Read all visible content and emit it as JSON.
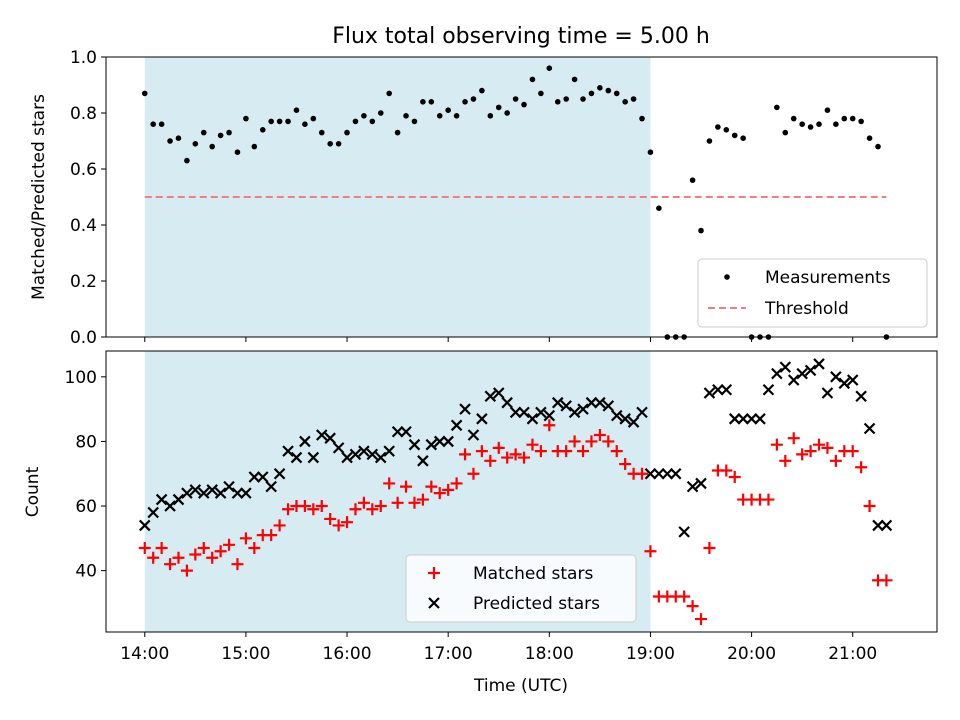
{
  "chart_data": [
    {
      "type": "scatter",
      "title": "Flux total observing time = 5.00 h",
      "ylabel": "Matched/Predicted stars",
      "xlabel": "",
      "ylim": [
        0,
        1.0
      ],
      "xlim": [
        "13:37",
        "21:50"
      ],
      "y_ticks": [
        0.0,
        0.2,
        0.4,
        0.6,
        0.8,
        1.0
      ],
      "y_tick_labels": [
        "0.0",
        "0.2",
        "0.4",
        "0.6",
        "0.8",
        "1.0"
      ],
      "shaded_span": [
        "14:00",
        "19:00"
      ],
      "legend_position": "lower-right",
      "series": [
        {
          "name": "Measurements",
          "marker": "dot",
          "color": "#000000",
          "x": [
            "14:00",
            "14:05",
            "14:10",
            "14:15",
            "14:20",
            "14:25",
            "14:30",
            "14:35",
            "14:40",
            "14:45",
            "14:50",
            "14:55",
            "15:00",
            "15:05",
            "15:10",
            "15:15",
            "15:20",
            "15:25",
            "15:30",
            "15:35",
            "15:40",
            "15:45",
            "15:50",
            "15:55",
            "16:00",
            "16:05",
            "16:10",
            "16:15",
            "16:20",
            "16:25",
            "16:30",
            "16:35",
            "16:40",
            "16:45",
            "16:50",
            "16:55",
            "17:00",
            "17:05",
            "17:10",
            "17:15",
            "17:20",
            "17:25",
            "17:30",
            "17:35",
            "17:40",
            "17:45",
            "17:50",
            "17:55",
            "18:00",
            "18:05",
            "18:10",
            "18:15",
            "18:20",
            "18:25",
            "18:30",
            "18:35",
            "18:40",
            "18:45",
            "18:50",
            "18:55",
            "19:00",
            "19:05",
            "19:10",
            "19:15",
            "19:20",
            "19:25",
            "19:30",
            "19:35",
            "19:40",
            "19:45",
            "19:50",
            "19:55",
            "20:00",
            "20:05",
            "20:10",
            "20:15",
            "20:20",
            "20:25",
            "20:30",
            "20:35",
            "20:40",
            "20:45",
            "20:50",
            "20:55",
            "21:00",
            "21:05",
            "21:10",
            "21:15",
            "21:20"
          ],
          "y": [
            0.87,
            0.76,
            0.76,
            0.7,
            0.71,
            0.63,
            0.69,
            0.73,
            0.68,
            0.72,
            0.73,
            0.66,
            0.78,
            0.68,
            0.74,
            0.77,
            0.77,
            0.77,
            0.81,
            0.76,
            0.78,
            0.73,
            0.69,
            0.69,
            0.73,
            0.77,
            0.79,
            0.77,
            0.8,
            0.87,
            0.73,
            0.79,
            0.77,
            0.84,
            0.84,
            0.79,
            0.81,
            0.79,
            0.84,
            0.85,
            0.88,
            0.79,
            0.82,
            0.8,
            0.85,
            0.83,
            0.92,
            0.87,
            0.96,
            0.84,
            0.85,
            0.92,
            0.85,
            0.87,
            0.89,
            0.88,
            0.87,
            0.84,
            0.85,
            0.78,
            0.66,
            0.46,
            0.0,
            0.0,
            0.0,
            0.56,
            0.38,
            0.7,
            0.75,
            0.74,
            0.72,
            0.71,
            0.0,
            0.0,
            0.0,
            0.82,
            0.73,
            0.78,
            0.76,
            0.75,
            0.76,
            0.81,
            0.76,
            0.78,
            0.78,
            0.77,
            0.71,
            0.68,
            0.0
          ]
        },
        {
          "name": "Threshold",
          "style": "dashed",
          "color": "#f08080",
          "x": [
            "14:00",
            "21:20"
          ],
          "y": [
            0.5,
            0.5
          ]
        }
      ]
    },
    {
      "type": "scatter",
      "title": "",
      "ylabel": "Count",
      "xlabel": "Time (UTC)",
      "ylim": [
        21,
        108
      ],
      "xlim": [
        "13:37",
        "21:50"
      ],
      "x_ticks": [
        "14:00",
        "15:00",
        "16:00",
        "17:00",
        "18:00",
        "19:00",
        "20:00",
        "21:00"
      ],
      "y_ticks": [
        40,
        60,
        80,
        100
      ],
      "y_tick_labels": [
        "40",
        "60",
        "80",
        "100"
      ],
      "shaded_span": [
        "14:00",
        "19:00"
      ],
      "legend_position": "lower-center",
      "series": [
        {
          "name": "Matched stars",
          "marker": "plus",
          "color": "#ff0000",
          "x": [
            "14:00",
            "14:05",
            "14:10",
            "14:15",
            "14:20",
            "14:25",
            "14:30",
            "14:35",
            "14:40",
            "14:45",
            "14:50",
            "14:55",
            "15:00",
            "15:05",
            "15:10",
            "15:15",
            "15:20",
            "15:25",
            "15:30",
            "15:35",
            "15:40",
            "15:45",
            "15:50",
            "15:55",
            "16:00",
            "16:05",
            "16:10",
            "16:15",
            "16:20",
            "16:25",
            "16:30",
            "16:35",
            "16:40",
            "16:45",
            "16:50",
            "16:55",
            "17:00",
            "17:05",
            "17:10",
            "17:15",
            "17:20",
            "17:25",
            "17:30",
            "17:35",
            "17:40",
            "17:45",
            "17:50",
            "17:55",
            "18:00",
            "18:05",
            "18:10",
            "18:15",
            "18:20",
            "18:25",
            "18:30",
            "18:35",
            "18:40",
            "18:45",
            "18:50",
            "18:55",
            "19:00",
            "19:05",
            "19:10",
            "19:15",
            "19:20",
            "19:25",
            "19:30",
            "19:35",
            "19:40",
            "19:45",
            "19:50",
            "19:55",
            "20:00",
            "20:05",
            "20:10",
            "20:15",
            "20:20",
            "20:25",
            "20:30",
            "20:35",
            "20:40",
            "20:45",
            "20:50",
            "20:55",
            "21:00",
            "21:05",
            "21:10",
            "21:15",
            "21:20"
          ],
          "y": [
            47,
            44,
            47,
            42,
            44,
            40,
            45,
            47,
            44,
            46,
            48,
            42,
            50,
            47,
            51,
            51,
            54,
            59,
            60,
            60,
            59,
            60,
            56,
            54,
            55,
            59,
            61,
            59,
            60,
            67,
            61,
            66,
            61,
            62,
            66,
            64,
            65,
            67,
            76,
            70,
            77,
            74,
            78,
            75,
            76,
            75,
            79,
            77,
            85,
            77,
            77,
            80,
            77,
            80,
            82,
            80,
            77,
            73,
            70,
            70,
            46,
            32,
            32,
            32,
            32,
            29,
            25,
            47,
            71,
            71,
            69,
            62,
            62,
            62,
            62,
            79,
            74,
            81,
            76,
            77,
            79,
            78,
            74,
            77,
            77,
            72,
            60,
            37,
            37
          ]
        },
        {
          "name": "Predicted stars",
          "marker": "x",
          "color": "#000000",
          "x": [
            "14:00",
            "14:05",
            "14:10",
            "14:15",
            "14:20",
            "14:25",
            "14:30",
            "14:35",
            "14:40",
            "14:45",
            "14:50",
            "14:55",
            "15:00",
            "15:05",
            "15:10",
            "15:15",
            "15:20",
            "15:25",
            "15:30",
            "15:35",
            "15:40",
            "15:45",
            "15:50",
            "15:55",
            "16:00",
            "16:05",
            "16:10",
            "16:15",
            "16:20",
            "16:25",
            "16:30",
            "16:35",
            "16:40",
            "16:45",
            "16:50",
            "16:55",
            "17:00",
            "17:05",
            "17:10",
            "17:15",
            "17:20",
            "17:25",
            "17:30",
            "17:35",
            "17:40",
            "17:45",
            "17:50",
            "17:55",
            "18:00",
            "18:05",
            "18:10",
            "18:15",
            "18:20",
            "18:25",
            "18:30",
            "18:35",
            "18:40",
            "18:45",
            "18:50",
            "18:55",
            "19:00",
            "19:05",
            "19:10",
            "19:15",
            "19:20",
            "19:25",
            "19:30",
            "19:35",
            "19:40",
            "19:45",
            "19:50",
            "19:55",
            "20:00",
            "20:05",
            "20:10",
            "20:15",
            "20:20",
            "20:25",
            "20:30",
            "20:35",
            "20:40",
            "20:45",
            "20:50",
            "20:55",
            "21:00",
            "21:05",
            "21:10",
            "21:15",
            "21:20"
          ],
          "y": [
            54,
            58,
            62,
            60,
            62,
            64,
            65,
            64,
            65,
            64,
            66,
            64,
            64,
            69,
            69,
            66,
            70,
            77,
            75,
            80,
            75,
            82,
            81,
            78,
            75,
            76,
            77,
            76,
            75,
            77,
            83,
            83,
            79,
            74,
            79,
            80,
            80,
            85,
            90,
            82,
            87,
            94,
            95,
            92,
            89,
            89,
            87,
            89,
            88,
            92,
            91,
            89,
            90,
            92,
            92,
            91,
            88,
            87,
            86,
            89,
            70,
            70,
            70,
            70,
            52,
            66,
            67,
            95,
            96,
            96,
            87,
            87,
            87,
            87,
            96,
            101,
            103,
            99,
            101,
            102,
            104,
            95,
            100,
            98,
            99,
            94,
            84,
            54,
            54
          ]
        }
      ]
    }
  ]
}
